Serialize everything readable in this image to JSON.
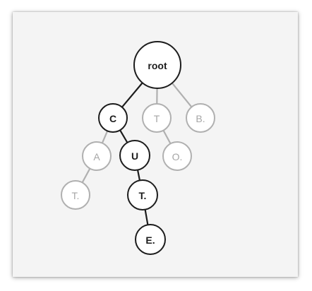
{
  "colors": {
    "active_stroke": "#1c1c1c",
    "active_text": "#1c1c1c",
    "inactive_stroke": "#b0b0b0",
    "inactive_text": "#a6a6a6",
    "node_fill": "#ffffff",
    "card_background": "#f4f4f4"
  },
  "tree": {
    "nodes": [
      {
        "id": "root",
        "label": "root",
        "active": true
      },
      {
        "id": "c",
        "label": "C",
        "active": true
      },
      {
        "id": "t",
        "label": "T",
        "active": false
      },
      {
        "id": "b",
        "label": "B.",
        "active": false
      },
      {
        "id": "a",
        "label": "A",
        "active": false
      },
      {
        "id": "u",
        "label": "U",
        "active": true
      },
      {
        "id": "o",
        "label": "O.",
        "active": false
      },
      {
        "id": "t2",
        "label": "T.",
        "active": false
      },
      {
        "id": "t3",
        "label": "T.",
        "active": true
      },
      {
        "id": "e",
        "label": "E.",
        "active": true
      }
    ],
    "edges": [
      {
        "from": "root",
        "to": "c",
        "active": true
      },
      {
        "from": "root",
        "to": "t",
        "active": false
      },
      {
        "from": "root",
        "to": "b",
        "active": false
      },
      {
        "from": "c",
        "to": "a",
        "active": false
      },
      {
        "from": "c",
        "to": "u",
        "active": true
      },
      {
        "from": "t",
        "to": "o",
        "active": false
      },
      {
        "from": "a",
        "to": "t2",
        "active": false
      },
      {
        "from": "u",
        "to": "t3",
        "active": true
      },
      {
        "from": "t3",
        "to": "e",
        "active": true
      }
    ]
  }
}
